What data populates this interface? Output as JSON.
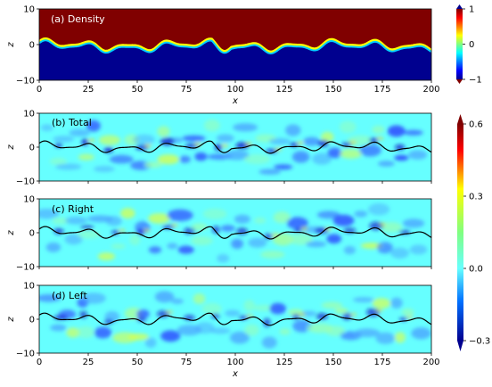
{
  "chart_data": [
    {
      "type": "heatmap",
      "title": "(a) Density",
      "xlabel": "x",
      "ylabel": "z",
      "xlim": [
        0,
        200
      ],
      "ylim": [
        -10,
        10
      ],
      "xticks": [
        "0",
        "25",
        "50",
        "75",
        "100",
        "125",
        "150",
        "175",
        "200"
      ],
      "yticks": [
        "10",
        "0",
        "−10"
      ],
      "colorbar": {
        "min": -1,
        "max": 1,
        "ticks": [
          "1",
          "0",
          "−1"
        ]
      },
      "interface_z": 0,
      "upper_value": 1,
      "lower_value": -1
    },
    {
      "type": "heatmap",
      "title": "(b) Total",
      "xlabel": "",
      "ylabel": "z",
      "xlim": [
        0,
        200
      ],
      "ylim": [
        -10,
        10
      ],
      "yticks": [
        "10",
        "0",
        "−10"
      ],
      "background_value": 0.0
    },
    {
      "type": "heatmap",
      "title": "(c) Right",
      "xlabel": "",
      "ylabel": "z",
      "xlim": [
        0,
        200
      ],
      "ylim": [
        -10,
        10
      ],
      "yticks": [
        "10",
        "0",
        "−10"
      ],
      "background_value": 0.0
    },
    {
      "type": "heatmap",
      "title": "(d) Left",
      "xlabel": "x",
      "ylabel": "z",
      "xlim": [
        0,
        200
      ],
      "ylim": [
        -10,
        10
      ],
      "xticks": [
        "0",
        "25",
        "50",
        "75",
        "100",
        "125",
        "150",
        "175",
        "200"
      ],
      "yticks": [
        "10",
        "0",
        "−10"
      ],
      "background_value": 0.0
    }
  ],
  "shared_colorbar": {
    "min": -0.3,
    "max": 0.6,
    "ticks": [
      "0.6",
      "0.3",
      "0.0",
      "−0.3"
    ]
  },
  "colors": {
    "dark_red": "#800000",
    "dark_blue": "#00008f",
    "cyan_zero": "#66ffff",
    "curve": "#000000"
  }
}
